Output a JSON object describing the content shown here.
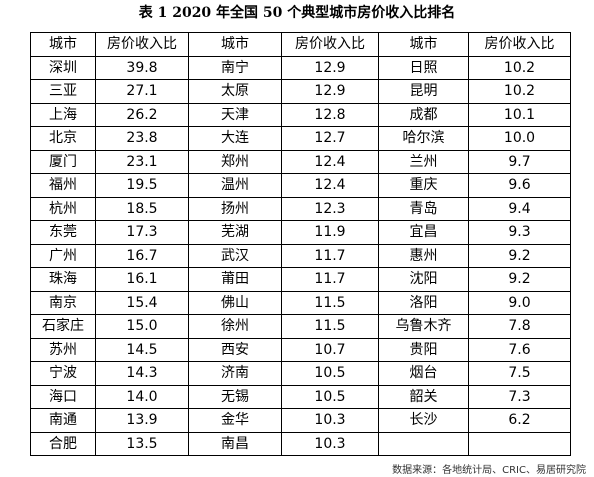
{
  "title": "表 1   2020 年全国 50 个典型城市房价收入比排名",
  "table": {
    "header": [
      "城市",
      "房价收入比",
      "城市",
      "房价收入比",
      "城市",
      "房价收入比"
    ],
    "rows": [
      [
        "深圳",
        "39.8",
        "南宁",
        "12.9",
        "日照",
        "10.2"
      ],
      [
        "三亚",
        "27.1",
        "太原",
        "12.9",
        "昆明",
        "10.2"
      ],
      [
        "上海",
        "26.2",
        "天津",
        "12.8",
        "成都",
        "10.1"
      ],
      [
        "北京",
        "23.8",
        "大连",
        "12.7",
        "哈尔滨",
        "10.0"
      ],
      [
        "厦门",
        "23.1",
        "郑州",
        "12.4",
        "兰州",
        "9.7"
      ],
      [
        "福州",
        "19.5",
        "温州",
        "12.4",
        "重庆",
        "9.6"
      ],
      [
        "杭州",
        "18.5",
        "扬州",
        "12.3",
        "青岛",
        "9.4"
      ],
      [
        "东莞",
        "17.3",
        "芜湖",
        "11.9",
        "宜昌",
        "9.3"
      ],
      [
        "广州",
        "16.7",
        "武汉",
        "11.7",
        "惠州",
        "9.2"
      ],
      [
        "珠海",
        "16.1",
        "莆田",
        "11.7",
        "沈阳",
        "9.2"
      ],
      [
        "南京",
        "15.4",
        "佛山",
        "11.5",
        "洛阳",
        "9.0"
      ],
      [
        "石家庄",
        "15.0",
        "徐州",
        "11.5",
        "乌鲁木齐",
        "7.8"
      ],
      [
        "苏州",
        "14.5",
        "西安",
        "10.7",
        "贵阳",
        "7.6"
      ],
      [
        "宁波",
        "14.3",
        "济南",
        "10.5",
        "烟台",
        "7.5"
      ],
      [
        "海口",
        "14.0",
        "无锡",
        "10.5",
        "韶关",
        "7.3"
      ],
      [
        "南通",
        "13.9",
        "金华",
        "10.3",
        "长沙",
        "6.2"
      ],
      [
        "合肥",
        "13.5",
        "南昌",
        "10.3"
      ]
    ]
  },
  "source": "数据来源：各地统计局、CRIC、易居研究院"
}
